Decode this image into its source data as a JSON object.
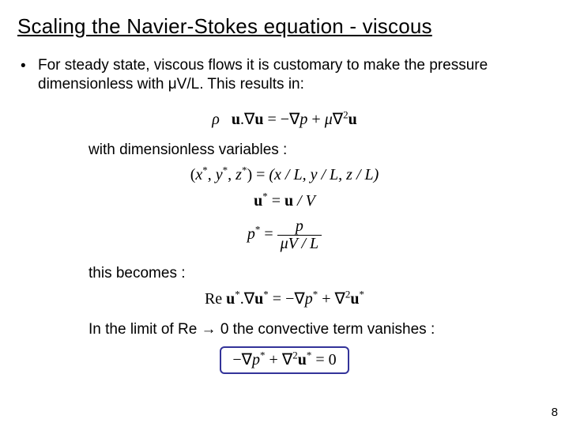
{
  "title": "Scaling the Navier-Stokes equation - viscous",
  "bullet": {
    "marker": "•",
    "text": "For steady state, viscous flows it is customary to make the pressure dimensionless with μV/L. This results in:"
  },
  "math": {
    "eq1_lhs_rho": "ρ",
    "eq1_lhs_u": "u",
    "eq1_dot": ".",
    "eq1_nabla": "∇",
    "eq1_eq": " = ",
    "eq1_rhs_minus": "−",
    "eq1_rhs_p": "p",
    "eq1_plus": " + ",
    "eq1_mu": "μ",
    "eq1_nabla2": "∇",
    "eq1_sq": "2",
    "line_dimvars": "with dimensionless variables :",
    "xyz_lhs_open": "(",
    "xyz_x": "x",
    "xyz_y": "y",
    "xyz_z": "z",
    "xyz_star": "*",
    "xyz_sep": ", ",
    "xyz_close": ")",
    "xyz_eq": " = ",
    "xyz_rhs": "(x / L, y / L, z / L)",
    "ustar_lhs_u": "u",
    "ustar_star": "*",
    "ustar_eq": " = ",
    "ustar_rhs_u": "u",
    "ustar_rhs_over": " / V",
    "pstar_lhs_p": "p",
    "pstar_star": "*",
    "pstar_eq": " = ",
    "pstar_num": "p",
    "pstar_den": "μV / L",
    "line_becomes": "this becomes :",
    "re_label": "Re ",
    "re_u": "u",
    "re_star": "*",
    "re_dot": ".",
    "re_nabla": "∇",
    "re_eq": " = ",
    "re_minus": "−",
    "re_p": "p",
    "re_plus": " + ",
    "re_nabla2_sq": "2",
    "line_limit": "In the limit of Re → 0 the convective term vanishes :",
    "box_minus": "−",
    "box_nabla": "∇",
    "box_p": "p",
    "box_star": "*",
    "box_plus": " + ",
    "box_sq": "2",
    "box_u": "u",
    "box_eq0": " = 0"
  },
  "page_number": "8",
  "colors": {
    "text": "#000000",
    "background": "#ffffff",
    "box_border": "#333399"
  }
}
